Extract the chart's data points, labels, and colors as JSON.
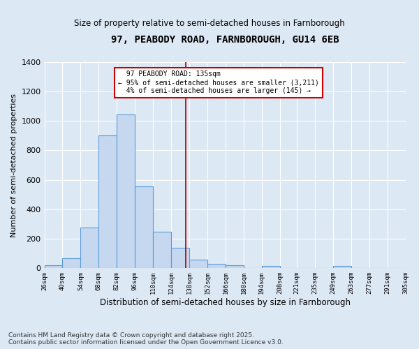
{
  "title": "97, PEABODY ROAD, FARNBOROUGH, GU14 6EB",
  "subtitle": "Size of property relative to semi-detached houses in Farnborough",
  "xlabel": "Distribution of semi-detached houses by size in Farnborough",
  "ylabel": "Number of semi-detached properties",
  "footnote": "Contains HM Land Registry data © Crown copyright and database right 2025.\nContains public sector information licensed under the Open Government Licence v3.0.",
  "property_label": "97 PEABODY ROAD: 135sqm",
  "pct_smaller": 95,
  "count_smaller": 3211,
  "pct_larger": 4,
  "count_larger": 145,
  "bin_edges": [
    26,
    40,
    54,
    68,
    82,
    96,
    110,
    124,
    138,
    152,
    166,
    180,
    194,
    208,
    221,
    235,
    249,
    263,
    277,
    291,
    305
  ],
  "bar_heights": [
    20,
    70,
    275,
    900,
    1045,
    555,
    250,
    140,
    60,
    30,
    20,
    0,
    15,
    0,
    0,
    0,
    15,
    0,
    0,
    0
  ],
  "bar_color": "#c5d8f0",
  "bar_edge_color": "#5b9bd5",
  "vline_color": "#aa0000",
  "vline_x": 135,
  "annotation_box_color": "#cc0000",
  "bg_color": "#dde8f5",
  "grid_color": "#c8d4e8",
  "ylim": [
    0,
    1400
  ],
  "yticks": [
    0,
    200,
    400,
    600,
    800,
    1000,
    1200,
    1400
  ]
}
